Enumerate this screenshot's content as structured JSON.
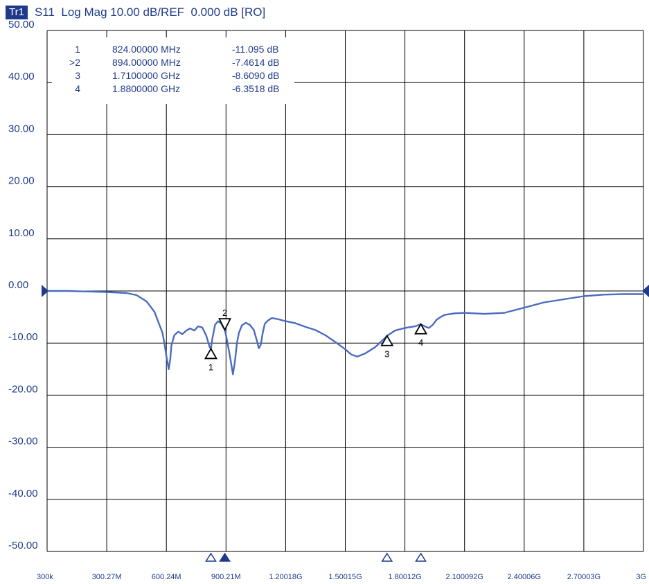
{
  "header": {
    "trace_badge": "Tr1",
    "text": "S11  Log Mag 10.00 dB/REF  0.000 dB [RO]"
  },
  "colors": {
    "trace": "#4a6bbf",
    "text": "#1f3a8a",
    "grid": "#000000",
    "marker": "#000000"
  },
  "marker_table": [
    {
      "id": "1",
      "freq": "824.00000 MHz",
      "value": "-11.095 dB"
    },
    {
      "id": ">2",
      "freq": "894.00000 MHz",
      "value": "-7.4614 dB"
    },
    {
      "id": "3",
      "freq": "1.7100000 GHz",
      "value": "-8.6090 dB"
    },
    {
      "id": "4",
      "freq": "1.8800000 GHz",
      "value": "-6.3518 dB"
    }
  ],
  "chart_data": {
    "type": "line",
    "title": "S11  Log Mag 10.00 dB/REF  0.000 dB [RO]",
    "xlabel": "",
    "ylabel": "",
    "xlim": [
      0.0003,
      3000
    ],
    "ylim": [
      -50,
      50
    ],
    "x_unit": "MHz",
    "y_unit": "dB",
    "ytick_labels": [
      "50.00",
      "40.00",
      "30.00",
      "20.00",
      "10.00",
      "0.00",
      "-10.00",
      "-20.00",
      "-30.00",
      "-40.00",
      "-50.00"
    ],
    "xtick_labels": [
      "300k",
      "300.27M",
      "600.24M",
      "900.21M",
      "1.20018G",
      "1.50015G",
      "1.80012G",
      "2.100092G",
      "2.40006G",
      "2.70003G",
      "3G"
    ],
    "grid": true,
    "reference_level": 0,
    "series": [
      {
        "name": "S11",
        "x": [
          0.3,
          100,
          200,
          300,
          400,
          450,
          500,
          540,
          560,
          580,
          590,
          600,
          612,
          620,
          625,
          640,
          660,
          680,
          700,
          720,
          740,
          760,
          780,
          800,
          812,
          818,
          824,
          832,
          845,
          860,
          875,
          890,
          894,
          900,
          910,
          922,
          935,
          945,
          955,
          965,
          980,
          1000,
          1020,
          1040,
          1055,
          1065,
          1075,
          1085,
          1095,
          1110,
          1130,
          1160,
          1200,
          1250,
          1300,
          1350,
          1400,
          1450,
          1500,
          1530,
          1560,
          1600,
          1650,
          1700,
          1710,
          1750,
          1800,
          1850,
          1880,
          1900,
          1920,
          1940,
          1960,
          1980,
          2000,
          2050,
          2100,
          2200,
          2300,
          2400,
          2500,
          2600,
          2700,
          2800,
          2900,
          3000
        ],
        "y": [
          0,
          0,
          -0.1,
          -0.2,
          -0.4,
          -0.8,
          -2.0,
          -4.0,
          -6.0,
          -8.0,
          -10.0,
          -12.5,
          -15.0,
          -13.0,
          -10.5,
          -8.5,
          -7.8,
          -8.3,
          -7.6,
          -7.2,
          -7.6,
          -6.8,
          -7.0,
          -8.5,
          -10.0,
          -10.8,
          -11.1,
          -9.0,
          -6.5,
          -5.8,
          -6.2,
          -7.2,
          -7.5,
          -8.5,
          -10.5,
          -13.0,
          -16.0,
          -13.5,
          -10.0,
          -8.0,
          -6.6,
          -6.1,
          -6.5,
          -7.5,
          -9.5,
          -11.0,
          -10.3,
          -8.0,
          -6.3,
          -5.7,
          -5.2,
          -5.4,
          -5.8,
          -6.2,
          -6.9,
          -7.5,
          -8.5,
          -9.8,
          -11.2,
          -12.2,
          -12.6,
          -12.0,
          -10.8,
          -9.0,
          -8.6,
          -7.6,
          -7.1,
          -6.8,
          -6.4,
          -6.8,
          -7.1,
          -6.5,
          -5.5,
          -5.0,
          -4.6,
          -4.3,
          -4.2,
          -4.4,
          -4.2,
          -3.2,
          -2.2,
          -1.6,
          -1.0,
          -0.7,
          -0.6,
          -0.6
        ]
      }
    ],
    "markers": [
      {
        "label": "1",
        "x": 824,
        "y": -11.095,
        "direction": "up",
        "active": false
      },
      {
        "label": "2",
        "x": 894,
        "y": -7.4614,
        "direction": "down",
        "active": true
      },
      {
        "label": "3",
        "x": 1710,
        "y": -8.609,
        "direction": "up",
        "active": false
      },
      {
        "label": "4",
        "x": 1880,
        "y": -6.3518,
        "direction": "up",
        "active": false
      }
    ]
  }
}
